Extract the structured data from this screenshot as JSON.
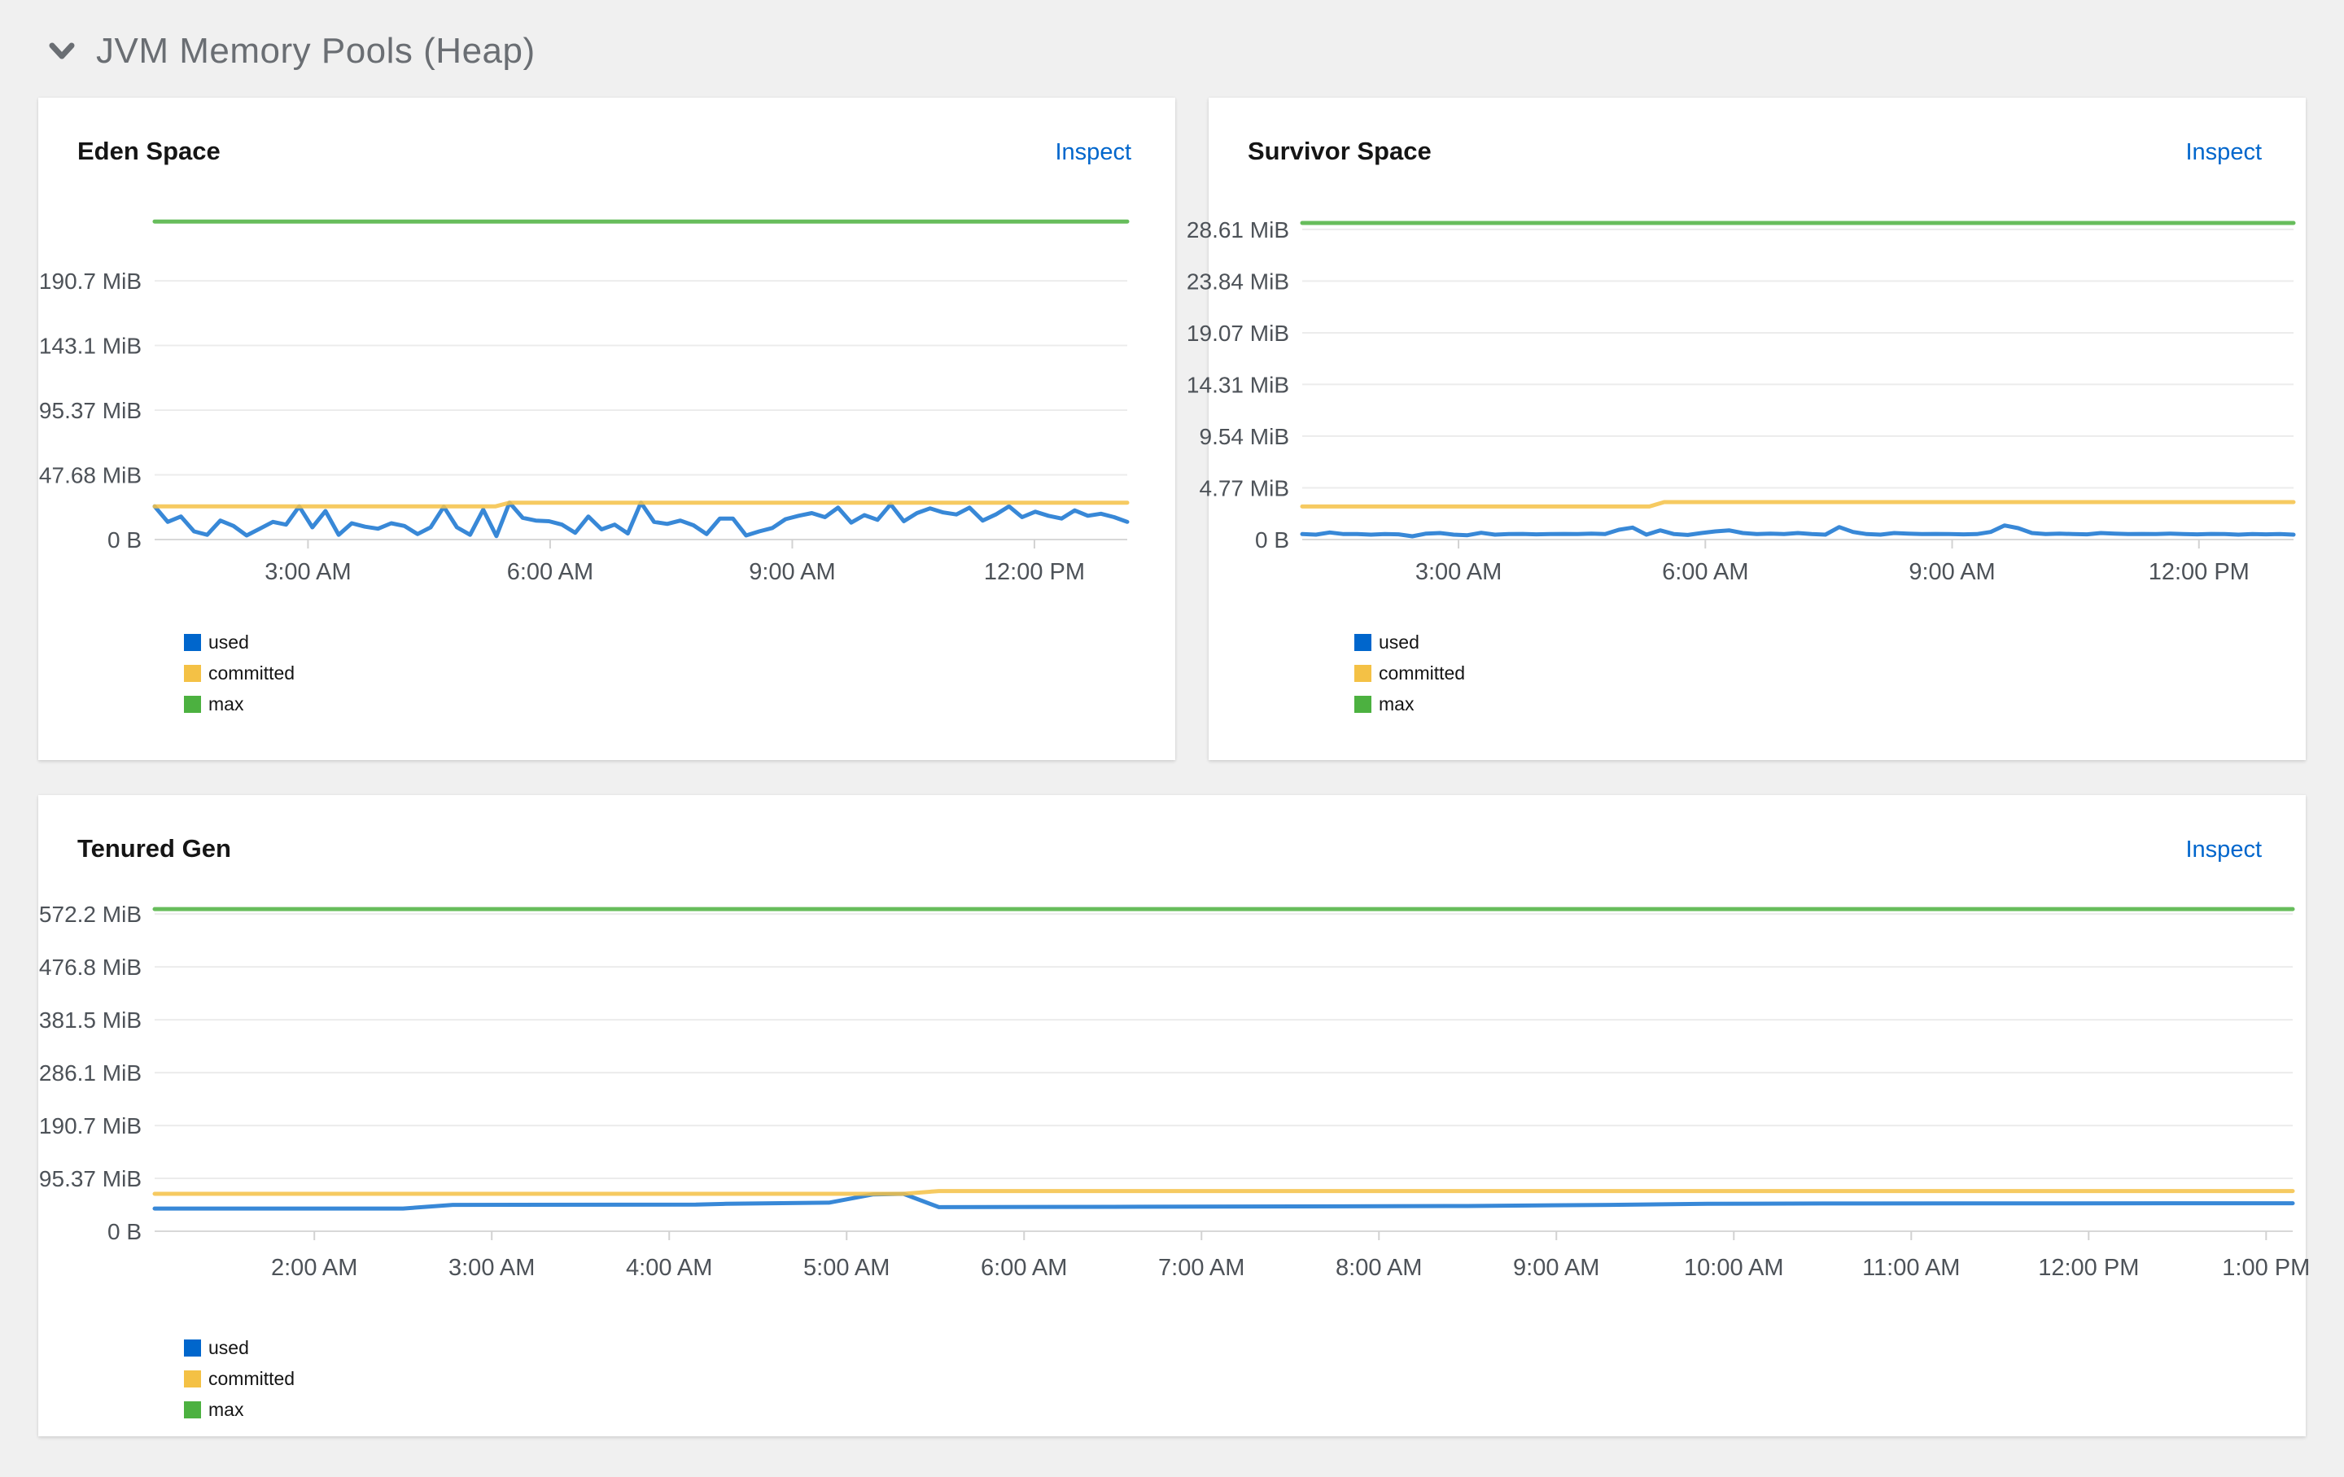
{
  "section": {
    "title": "JVM Memory Pools (Heap)",
    "collapse_icon": "chevron-down-icon",
    "expanded": true
  },
  "panels": [
    {
      "title": "Eden Space",
      "action": "Inspect"
    },
    {
      "title": "Survivor Space",
      "action": "Inspect"
    },
    {
      "title": "Tenured Gen",
      "action": "Inspect"
    }
  ],
  "colors": {
    "used": "#0066cc",
    "committed": "#f4c145",
    "max": "#4cb140",
    "link": "#0066cc",
    "grid": "#ececec",
    "axis": "#d8d8d8",
    "tick_text": "#4d5258",
    "section_title": "#6a6e73",
    "panel_bg": "#ffffff",
    "page_bg": "#f0f0f0"
  },
  "chart_data": [
    {
      "id": "eden",
      "type": "line",
      "title": "Eden Space",
      "unit": "MiB",
      "grid": true,
      "legend_position": "bottom-left",
      "x_range_hours": [
        1.1,
        13.15
      ],
      "y_range": [
        0,
        240
      ],
      "x_ticks": [
        {
          "t": 3,
          "label": "3:00 AM"
        },
        {
          "t": 6,
          "label": "6:00 AM"
        },
        {
          "t": 9,
          "label": "9:00 AM"
        },
        {
          "t": 12,
          "label": "12:00 PM"
        }
      ],
      "y_ticks": [
        {
          "v": 0,
          "label": "0 B"
        },
        {
          "v": 47.68,
          "label": "47.68 MiB"
        },
        {
          "v": 95.37,
          "label": "95.37 MiB"
        },
        {
          "v": 143.1,
          "label": "143.1 MiB"
        },
        {
          "v": 190.7,
          "label": "190.7 MiB"
        }
      ],
      "series": [
        {
          "name": "used",
          "color": "#0066cc",
          "values": [
            24.4,
            13,
            17,
            6,
            3.5,
            14,
            10,
            3,
            8,
            13,
            11,
            24.4,
            9,
            21,
            3.5,
            12,
            9.5,
            8,
            12,
            10,
            4,
            9,
            24.2,
            9,
            3.5,
            22,
            2.5,
            27.2,
            16,
            14,
            13.5,
            11,
            5,
            17,
            7.5,
            11,
            4.5,
            27.2,
            13,
            11.5,
            14,
            10.5,
            4,
            15.5,
            15.5,
            3,
            6,
            8.5,
            15,
            17.5,
            19.5,
            16.5,
            23.5,
            12.5,
            18,
            14.5,
            26,
            13.5,
            19.5,
            23,
            20,
            18.5,
            23.5,
            14,
            18.5,
            24.5,
            16.5,
            20.5,
            17.5,
            15.5,
            21.5,
            17.5,
            19,
            16.5,
            13
          ]
        },
        {
          "name": "committed",
          "color": "#f4c145",
          "points": [
            [
              1.1,
              24.4
            ],
            [
              5.32,
              24.4
            ],
            [
              5.5,
              27.2
            ],
            [
              13.15,
              27.2
            ]
          ]
        },
        {
          "name": "max",
          "color": "#4cb140",
          "points": [
            [
              1.1,
              234.5
            ],
            [
              13.15,
              234.5
            ]
          ]
        }
      ]
    },
    {
      "id": "survivor",
      "type": "line",
      "title": "Survivor Space",
      "unit": "MiB",
      "grid": true,
      "legend_position": "bottom-left",
      "x_range_hours": [
        1.1,
        13.15
      ],
      "y_range": [
        0,
        30.1
      ],
      "x_ticks": [
        {
          "t": 3,
          "label": "3:00 AM"
        },
        {
          "t": 6,
          "label": "6:00 AM"
        },
        {
          "t": 9,
          "label": "9:00 AM"
        },
        {
          "t": 12,
          "label": "12:00 PM"
        }
      ],
      "y_ticks": [
        {
          "v": 0,
          "label": "0 B"
        },
        {
          "v": 4.77,
          "label": "4.77 MiB"
        },
        {
          "v": 9.54,
          "label": "9.54 MiB"
        },
        {
          "v": 14.31,
          "label": "14.31 MiB"
        },
        {
          "v": 19.07,
          "label": "19.07 MiB"
        },
        {
          "v": 23.84,
          "label": "23.84 MiB"
        },
        {
          "v": 28.61,
          "label": "28.61 MiB"
        }
      ],
      "series": [
        {
          "name": "used",
          "color": "#0066cc",
          "values": [
            0.5,
            0.45,
            0.65,
            0.5,
            0.5,
            0.45,
            0.5,
            0.48,
            0.3,
            0.55,
            0.6,
            0.45,
            0.4,
            0.62,
            0.45,
            0.5,
            0.52,
            0.48,
            0.5,
            0.52,
            0.5,
            0.55,
            0.5,
            0.9,
            1.1,
            0.45,
            0.85,
            0.5,
            0.42,
            0.6,
            0.75,
            0.85,
            0.6,
            0.5,
            0.55,
            0.5,
            0.6,
            0.5,
            0.45,
            1.15,
            0.7,
            0.5,
            0.45,
            0.6,
            0.55,
            0.5,
            0.52,
            0.5,
            0.48,
            0.5,
            0.7,
            1.3,
            1.05,
            0.6,
            0.5,
            0.55,
            0.5,
            0.48,
            0.6,
            0.55,
            0.5,
            0.52,
            0.5,
            0.55,
            0.5,
            0.48,
            0.52,
            0.5,
            0.45,
            0.5,
            0.48,
            0.5,
            0.45
          ]
        },
        {
          "name": "committed",
          "color": "#f4c145",
          "points": [
            [
              1.1,
              3.05
            ],
            [
              5.32,
              3.05
            ],
            [
              5.5,
              3.45
            ],
            [
              13.15,
              3.45
            ]
          ]
        },
        {
          "name": "max",
          "color": "#4cb140",
          "points": [
            [
              1.1,
              29.2
            ],
            [
              13.15,
              29.2
            ]
          ]
        }
      ]
    },
    {
      "id": "tenured",
      "type": "line",
      "title": "Tenured Gen",
      "unit": "MiB",
      "grid": true,
      "legend_position": "bottom-left",
      "x_range_hours": [
        1.1,
        13.15
      ],
      "y_range": [
        0,
        590
      ],
      "x_ticks": [
        {
          "t": 2,
          "label": "2:00 AM"
        },
        {
          "t": 3,
          "label": "3:00 AM"
        },
        {
          "t": 4,
          "label": "4:00 AM"
        },
        {
          "t": 5,
          "label": "5:00 AM"
        },
        {
          "t": 6,
          "label": "6:00 AM"
        },
        {
          "t": 7,
          "label": "7:00 AM"
        },
        {
          "t": 8,
          "label": "8:00 AM"
        },
        {
          "t": 9,
          "label": "9:00 AM"
        },
        {
          "t": 10,
          "label": "10:00 AM"
        },
        {
          "t": 11,
          "label": "11:00 AM"
        },
        {
          "t": 12,
          "label": "12:00 PM"
        },
        {
          "t": 13,
          "label": "1:00 PM"
        }
      ],
      "y_ticks": [
        {
          "v": 0,
          "label": "0 B"
        },
        {
          "v": 95.37,
          "label": "95.37 MiB"
        },
        {
          "v": 190.7,
          "label": "190.7 MiB"
        },
        {
          "v": 286.1,
          "label": "286.1 MiB"
        },
        {
          "v": 381.5,
          "label": "381.5 MiB"
        },
        {
          "v": 476.8,
          "label": "476.8 MiB"
        },
        {
          "v": 572.2,
          "label": "572.2 MiB"
        }
      ],
      "series": [
        {
          "name": "used",
          "color": "#0066cc",
          "points": [
            [
              1.1,
              41
            ],
            [
              2.5,
              41
            ],
            [
              2.78,
              47.5
            ],
            [
              4.15,
              48
            ],
            [
              4.32,
              49.5
            ],
            [
              4.9,
              51.5
            ],
            [
              5.15,
              66.5
            ],
            [
              5.32,
              67.5
            ],
            [
              5.52,
              43.5
            ],
            [
              6.5,
              44
            ],
            [
              8.5,
              45.5
            ],
            [
              9.3,
              47.5
            ],
            [
              9.85,
              49.5
            ],
            [
              10.5,
              50
            ],
            [
              13.15,
              50.5
            ]
          ]
        },
        {
          "name": "committed",
          "color": "#f4c145",
          "points": [
            [
              1.1,
              67.5
            ],
            [
              5.32,
              67.5
            ],
            [
              5.52,
              72.5
            ],
            [
              13.15,
              72.5
            ]
          ]
        },
        {
          "name": "max",
          "color": "#4cb140",
          "points": [
            [
              1.1,
              581
            ],
            [
              13.15,
              581
            ]
          ]
        }
      ]
    }
  ]
}
